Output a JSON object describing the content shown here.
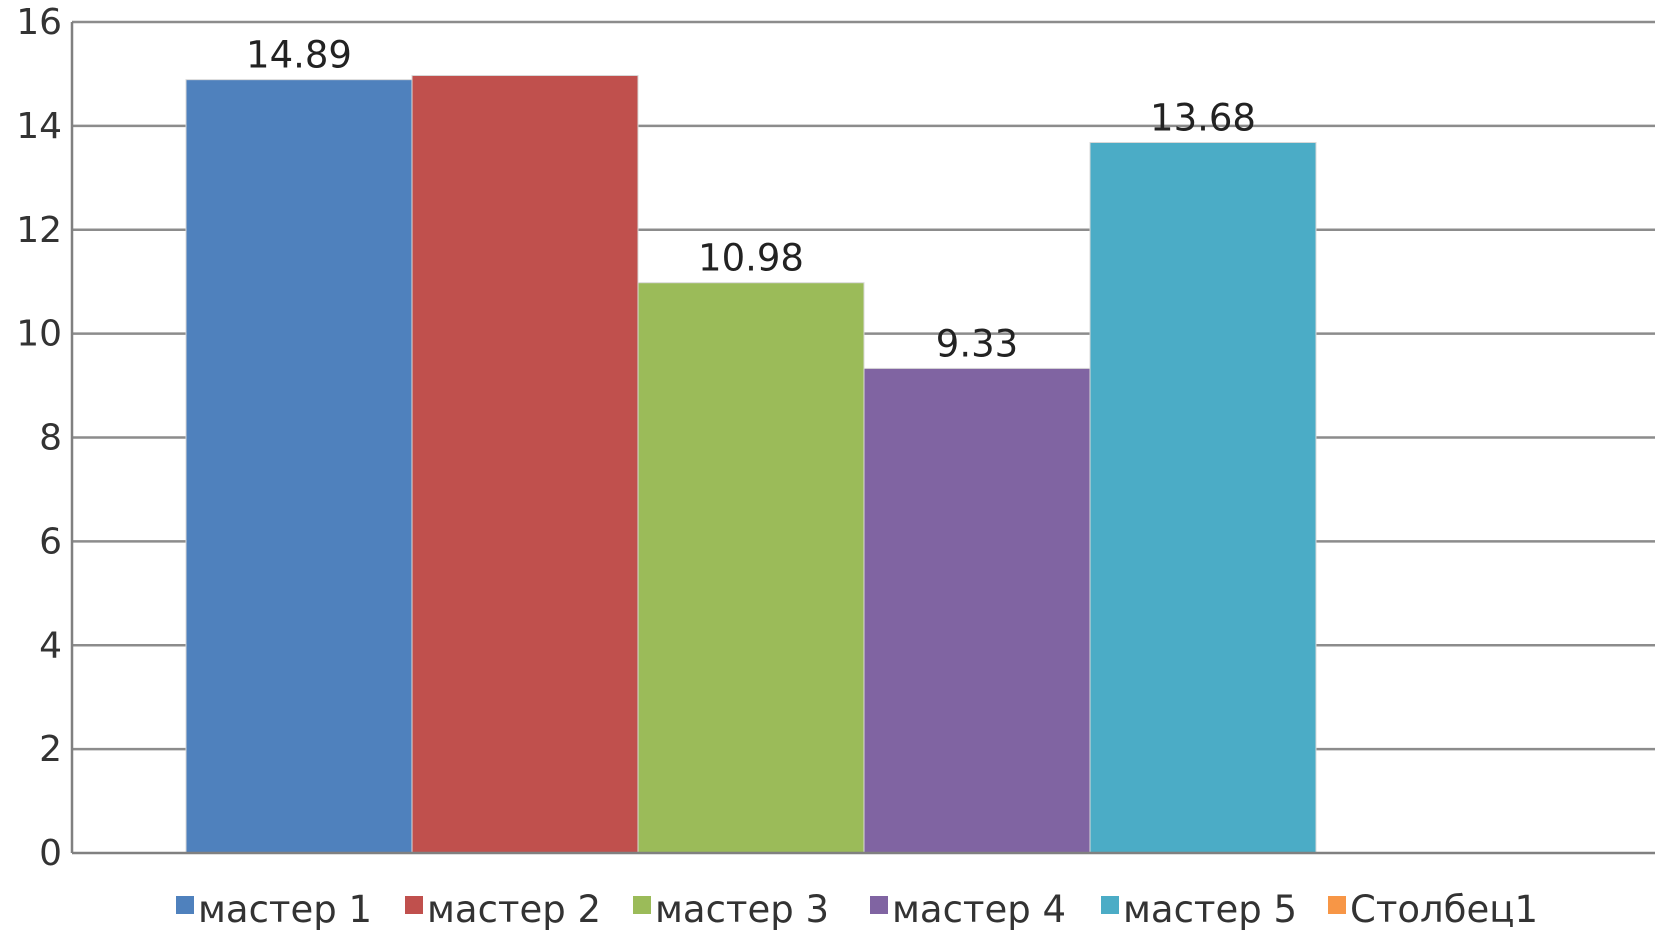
{
  "chart_data": {
    "type": "bar",
    "title": "",
    "xlabel": "",
    "ylabel": "",
    "ylim": [
      0,
      16
    ],
    "yticks": [
      0,
      2,
      4,
      6,
      8,
      10,
      12,
      14,
      16
    ],
    "grid": true,
    "legend_position": "bottom",
    "categories": [
      "мастер 1",
      "мастер 2",
      "мастер 3",
      "мастер 4",
      "мастер 5",
      "Столбец1"
    ],
    "series": [
      {
        "name": "мастер 1",
        "value": 14.89,
        "color": "#4F81BD",
        "label": "14.89"
      },
      {
        "name": "мастер 2",
        "value": 14.97,
        "color": "#C0504D",
        "label": ""
      },
      {
        "name": "мастер 3",
        "value": 10.98,
        "color": "#9BBB59",
        "label": "10.98"
      },
      {
        "name": "мастер 4",
        "value": 9.33,
        "color": "#8064A2",
        "label": "9.33"
      },
      {
        "name": "мастер 5",
        "value": 13.68,
        "color": "#4BACC6",
        "label": "13.68"
      },
      {
        "name": "Столбец1",
        "value": null,
        "color": "#F79646",
        "label": ""
      }
    ]
  }
}
